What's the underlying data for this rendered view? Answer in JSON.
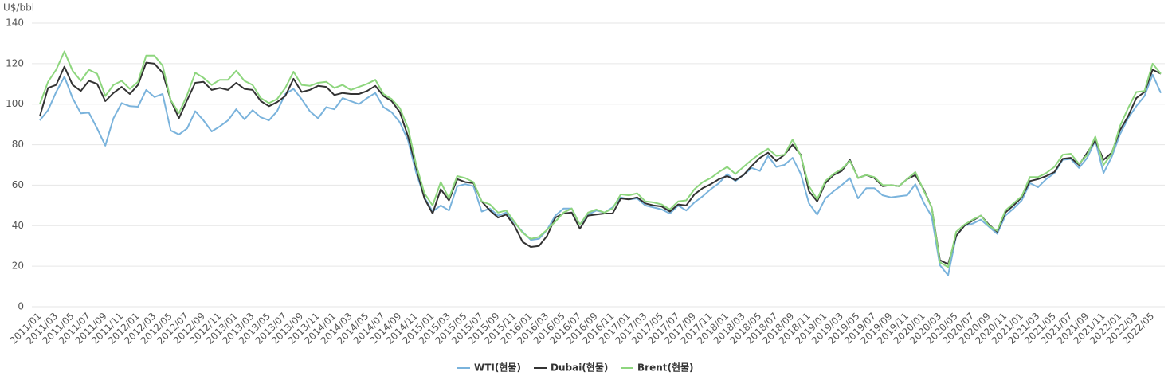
{
  "chart_data": {
    "type": "line",
    "y_label": "U$/bbl",
    "categories": [
      "2011/01",
      null,
      "2011/03",
      null,
      "2011/05",
      null,
      "2011/07",
      null,
      "2011/09",
      null,
      "2011/11",
      null,
      "2012/01",
      null,
      "2012/03",
      null,
      "2012/05",
      null,
      "2012/07",
      null,
      "2012/09",
      null,
      "2012/11",
      null,
      "2013/01",
      null,
      "2013/03",
      null,
      "2013/05",
      null,
      "2013/07",
      null,
      "2013/09",
      null,
      "2013/11",
      null,
      "2014/01",
      null,
      "2014/03",
      null,
      "2014/05",
      null,
      "2014/07",
      null,
      "2014/09",
      null,
      "2014/11",
      null,
      "2015/01",
      null,
      "2015/03",
      null,
      "2015/05",
      null,
      "2015/07",
      null,
      "2015/09",
      null,
      "2015/11",
      null,
      "2016/01",
      null,
      "2016/03",
      null,
      "2016/05",
      null,
      "2016/07",
      null,
      "2016/09",
      null,
      "2016/11",
      null,
      "2017/01",
      null,
      "2017/03",
      null,
      "2017/05",
      null,
      "2017/07",
      null,
      "2017/09",
      null,
      "2017/11",
      null,
      "2018/01",
      null,
      "2018/03",
      null,
      "2018/05",
      null,
      "2018/07",
      null,
      "2018/09",
      null,
      "2018/11",
      null,
      "2019/01",
      null,
      "2019/03",
      null,
      "2019/05",
      null,
      "2019/07",
      null,
      "2019/09",
      null,
      "2019/11",
      null,
      "2020/01",
      null,
      "2020/03",
      null,
      "2020/05",
      null,
      "2020/07",
      null,
      "2020/09",
      null,
      "2020/11",
      null,
      "2021/01",
      null,
      "2021/03",
      null,
      "2021/05",
      null,
      "2021/07",
      null,
      "2021/09",
      null,
      "2021/11",
      null,
      "2022/01",
      null,
      "2022/03",
      null,
      "2022/05",
      null
    ],
    "series": [
      {
        "name": "WTI(현물)",
        "color": "#7ab3dc",
        "values": [
          92,
          97,
          106,
          113.5,
          103,
          95.5,
          95.8,
          88,
          79.5,
          93,
          100.5,
          99,
          98.7,
          107,
          103.5,
          105,
          87,
          85,
          88,
          96.5,
          92,
          86.5,
          89,
          92,
          97.5,
          92.5,
          97,
          93.5,
          92,
          96.5,
          105,
          107.5,
          102.5,
          96.5,
          93,
          98.5,
          97.5,
          103,
          101.5,
          100,
          103,
          105.5,
          98.5,
          96,
          91,
          82,
          66,
          54,
          47,
          50,
          47.5,
          59.5,
          60.5,
          59.5,
          47,
          48.5,
          45,
          46.5,
          41.5,
          37,
          33,
          33.5,
          38,
          45,
          48.5,
          48.5,
          40.5,
          45.5,
          47.5,
          46.5,
          49,
          54,
          53,
          53.5,
          50,
          49,
          48,
          46,
          50,
          47.5,
          51.5,
          54.5,
          58,
          61,
          65.5,
          62,
          65,
          68.5,
          67,
          74.5,
          69,
          70,
          73.5,
          65.5,
          51,
          45.5,
          53.5,
          57,
          60,
          63.5,
          53.5,
          58.5,
          58.5,
          55,
          54,
          54.5,
          55,
          60.5,
          51.5,
          44.5,
          20.5,
          15.5,
          35,
          40,
          41,
          43,
          39.5,
          36,
          45,
          48.5,
          52.5,
          61,
          59,
          63,
          66,
          72.5,
          73,
          68.5,
          73.5,
          82,
          66,
          74,
          85,
          93,
          99,
          104,
          114.5,
          105.5
        ]
      },
      {
        "name": "Dubai(현물)",
        "color": "#333333",
        "values": [
          94,
          108,
          109.5,
          118.5,
          109.5,
          106.5,
          111.5,
          110,
          101.5,
          105.5,
          108.5,
          105,
          109.5,
          120.5,
          120,
          115.5,
          102,
          93,
          102,
          110.5,
          111,
          107,
          108,
          107,
          110.5,
          107.5,
          107,
          101.5,
          99,
          101,
          104,
          112.5,
          106,
          107,
          109,
          108.5,
          104.5,
          105.5,
          105,
          105,
          106.5,
          109,
          104,
          101.5,
          96,
          84,
          68.5,
          53.5,
          46,
          58,
          52.5,
          63,
          61.5,
          61,
          52,
          47.5,
          44,
          45.5,
          40,
          32,
          29.5,
          30,
          35,
          44,
          46,
          46.5,
          38.5,
          45,
          45.5,
          46,
          46,
          53.5,
          53,
          54,
          51,
          50,
          49.5,
          47,
          50.5,
          50,
          55.5,
          58.5,
          60.5,
          63,
          64.5,
          62.5,
          65,
          69.5,
          73.5,
          76,
          72,
          75,
          80,
          75,
          57,
          52,
          61,
          65,
          67,
          72.5,
          63.5,
          65,
          63.5,
          59.5,
          60,
          59.5,
          63,
          65,
          58,
          49,
          23,
          21,
          35,
          40,
          42.5,
          45,
          40.5,
          37,
          46.5,
          50,
          54,
          62,
          63,
          64.5,
          66.5,
          73,
          73.5,
          70,
          76,
          82,
          72.5,
          76,
          87,
          94,
          103,
          106,
          117,
          115
        ]
      },
      {
        "name": "Brent(현물)",
        "color": "#8ed67e",
        "values": [
          100,
          111,
          117,
          126,
          116.5,
          111.5,
          117,
          115,
          104,
          109.5,
          111.5,
          107.5,
          111,
          124,
          124,
          119,
          102,
          95.5,
          104.5,
          115.5,
          113,
          109.5,
          112,
          112,
          116.5,
          111.5,
          109.5,
          103,
          100.5,
          102.5,
          108,
          116,
          109.5,
          109,
          110.5,
          111,
          108,
          109.5,
          107,
          108.5,
          110,
          112,
          105,
          102.5,
          98,
          88,
          70,
          56,
          50,
          61.5,
          53.5,
          64.5,
          63.5,
          61.5,
          52,
          50.5,
          46.5,
          47.5,
          42,
          36.5,
          33.5,
          34.5,
          38,
          42,
          46.5,
          48.5,
          40.5,
          46.5,
          48,
          46.5,
          48.5,
          55.5,
          55,
          56,
          52,
          51.5,
          50.5,
          48,
          52,
          52.5,
          58,
          61.5,
          63.5,
          66.5,
          69,
          65.5,
          69,
          72.5,
          75.5,
          78,
          74.5,
          75,
          82.5,
          74.5,
          59.5,
          53,
          62,
          65.5,
          68,
          72,
          63.5,
          65,
          64,
          60,
          60,
          59.5,
          63,
          66.5,
          57.5,
          49,
          22,
          19.5,
          37,
          40.5,
          43,
          45,
          40,
          37.5,
          47.5,
          51,
          54.5,
          64,
          64,
          66,
          69,
          75,
          75.5,
          70.5,
          75,
          84,
          70,
          75.5,
          89,
          98,
          106,
          106.5,
          120,
          115
        ]
      }
    ],
    "ylim": [
      0,
      140
    ],
    "yticks": [
      0,
      20,
      40,
      60,
      80,
      100,
      120,
      140
    ],
    "grid": true,
    "legend": "bottom"
  }
}
